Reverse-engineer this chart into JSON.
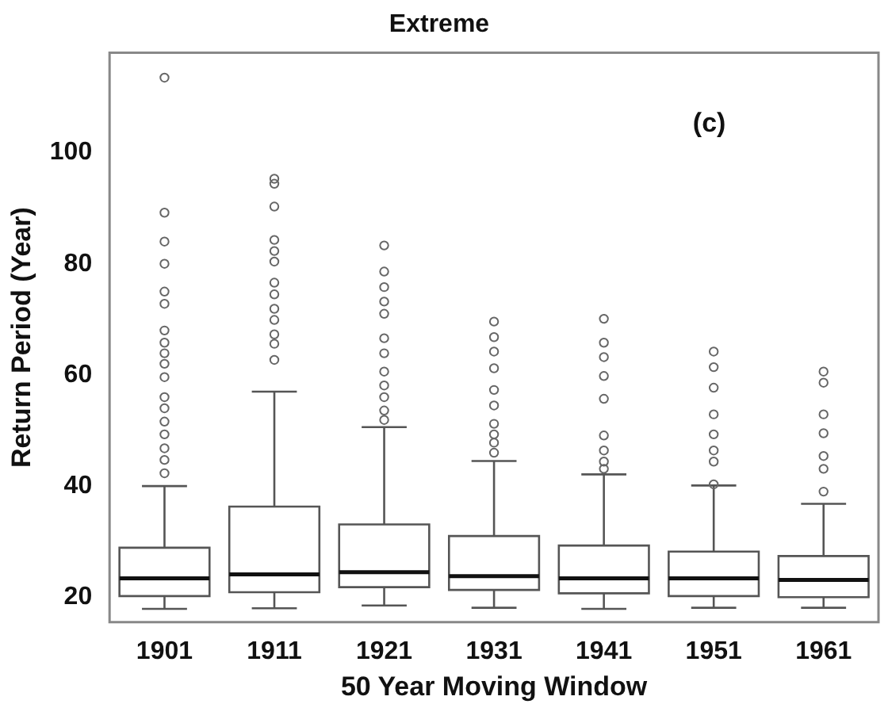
{
  "chart_data": {
    "type": "box",
    "title": "Extreme",
    "xlabel": "50 Year Moving Window",
    "ylabel": "Return Period (Year)",
    "categories": [
      "1901",
      "1911",
      "1921",
      "1931",
      "1941",
      "1951",
      "1961"
    ],
    "boxes": [
      {
        "low": 17.9,
        "q1": 20.2,
        "median": 23.4,
        "q3": 28.9,
        "high": 40,
        "outliers": [
          113.5,
          89.2,
          84,
          80,
          75,
          72.8,
          68,
          65.8,
          63.9,
          62,
          59.6,
          56,
          54,
          51.6,
          49.3,
          46.8,
          44.7,
          42.3
        ]
      },
      {
        "low": 18,
        "q1": 20.9,
        "median": 24.1,
        "q3": 36.3,
        "high": 57,
        "outliers": [
          95.3,
          94.4,
          90.3,
          84.3,
          82.3,
          80.4,
          76.6,
          74.5,
          71.9,
          69.9,
          67.3,
          65.6,
          62.7
        ]
      },
      {
        "low": 18.5,
        "q1": 21.8,
        "median": 24.5,
        "q3": 33.1,
        "high": 50.6,
        "outliers": [
          83.3,
          78.6,
          75.8,
          73.2,
          71,
          66.6,
          63.9,
          60.6,
          58.1,
          56,
          53.6,
          51.9
        ]
      },
      {
        "low": 18.1,
        "q1": 21.3,
        "median": 23.8,
        "q3": 31,
        "high": 44.5,
        "outliers": [
          69.6,
          66.8,
          64.2,
          61.2,
          57.3,
          54.5,
          51.2,
          49.3,
          47.8,
          46
        ]
      },
      {
        "low": 17.9,
        "q1": 20.7,
        "median": 23.4,
        "q3": 29.3,
        "high": 42.1,
        "outliers": [
          70.1,
          65.8,
          63.2,
          59.8,
          55.7,
          49.1,
          46.4,
          44.4,
          43.1
        ]
      },
      {
        "low": 18.1,
        "q1": 20.2,
        "median": 23.4,
        "q3": 28.2,
        "high": 40.1,
        "outliers": [
          64.2,
          61.4,
          57.7,
          52.9,
          49.3,
          46.4,
          44.4,
          40.3
        ]
      },
      {
        "low": 18.1,
        "q1": 20,
        "median": 23.1,
        "q3": 27.4,
        "high": 36.8,
        "outliers": [
          60.6,
          58.6,
          52.9,
          49.5,
          45.4,
          43.1,
          39
        ]
      }
    ],
    "ylim": [
      15.5,
      118
    ],
    "yticks": [
      20,
      40,
      60,
      80,
      100
    ],
    "grid": false,
    "annotations": [
      "(c)"
    ]
  }
}
